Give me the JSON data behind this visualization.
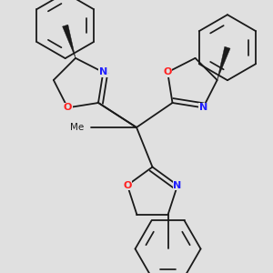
{
  "bg_color": "#e0e0e0",
  "bond_color": "#1a1a1a",
  "N_color": "#2020ff",
  "O_color": "#ff2020",
  "lw": 1.3,
  "figsize": [
    3.0,
    3.0
  ],
  "dpi": 100,
  "xlim": [
    -2.8,
    2.8
  ],
  "ylim": [
    -3.2,
    2.8
  ]
}
